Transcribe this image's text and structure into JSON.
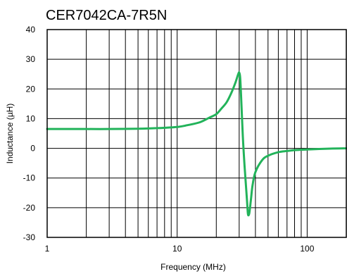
{
  "chart_data": {
    "type": "line",
    "title": "CER7042CA-7R5N",
    "xlabel": "Frequency (MHz)",
    "ylabel": "Inductance (µH)",
    "x_scale": "log",
    "xlim": [
      1,
      200
    ],
    "ylim": [
      -30,
      40
    ],
    "x_ticks": [
      1,
      10,
      100
    ],
    "x_tick_labels": [
      "1",
      "10",
      "100"
    ],
    "y_ticks": [
      40,
      30,
      20,
      10,
      0,
      -10,
      -20,
      -30
    ],
    "y_tick_labels": [
      "40",
      "30",
      "20",
      "10",
      "0",
      "-10",
      "-20",
      "-30"
    ],
    "grid": true,
    "line_color": "#22b35a",
    "series": [
      {
        "x": [
          1,
          2,
          3,
          5,
          7,
          10,
          12,
          15,
          18,
          20,
          22,
          24,
          26,
          28,
          29.5,
          30,
          30.5,
          31,
          32,
          33,
          34,
          34.5,
          35,
          35.5,
          36,
          37,
          38,
          40,
          45,
          50,
          60,
          70,
          80,
          100,
          150,
          200
        ],
        "y": [
          6.5,
          6.5,
          6.5,
          6.6,
          6.8,
          7.2,
          7.8,
          8.8,
          10.5,
          11.5,
          13.5,
          15.5,
          18.5,
          22,
          25,
          25.5,
          24,
          18,
          4,
          -6,
          -14,
          -18,
          -22,
          -22.5,
          -21.5,
          -17,
          -12.5,
          -8,
          -4,
          -2.5,
          -1.3,
          -0.9,
          -0.6,
          -0.4,
          -0.1,
          0
        ]
      }
    ]
  }
}
